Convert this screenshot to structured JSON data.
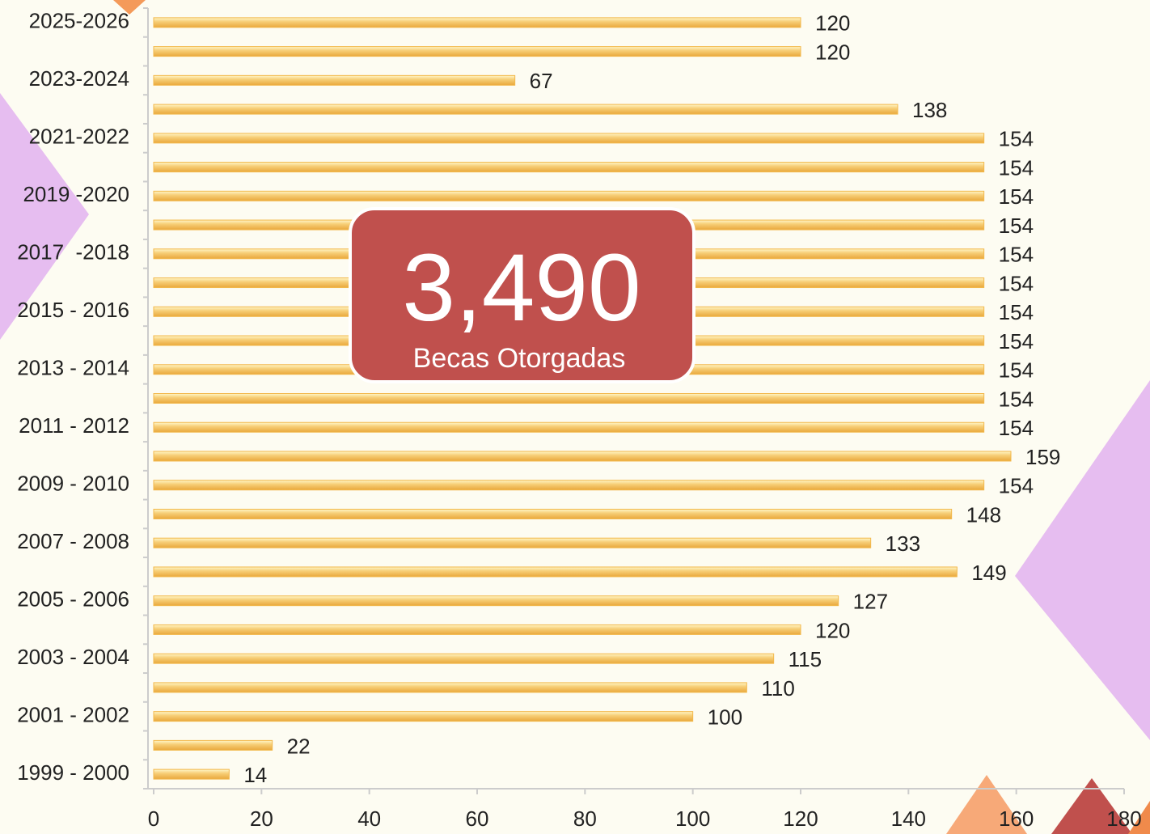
{
  "chart_data": {
    "type": "bar",
    "orientation": "horizontal",
    "categories": [
      "2025-2026",
      null,
      "2023-2024",
      null,
      "2021-2022",
      null,
      "2019 -2020",
      null,
      "2017  -2018",
      null,
      "2015 - 2016",
      null,
      "2013 - 2014",
      null,
      "2011 - 2012",
      null,
      "2009 - 2010",
      null,
      "2007 - 2008",
      null,
      "2005 - 2006",
      null,
      "2003 - 2004",
      null,
      "2001 - 2002",
      null,
      "1999 - 2000"
    ],
    "values": [
      120,
      120,
      67,
      138,
      154,
      154,
      154,
      154,
      154,
      154,
      154,
      154,
      154,
      154,
      154,
      159,
      154,
      148,
      133,
      149,
      127,
      120,
      115,
      110,
      100,
      22,
      14
    ],
    "color": "#f2b84b",
    "xlim": [
      0,
      180
    ],
    "xticks": [
      0,
      20,
      40,
      60,
      80,
      100,
      120,
      140,
      160,
      180
    ],
    "grid": false,
    "annotations": [
      "3,490",
      "Becas Otorgadas"
    ]
  }
}
